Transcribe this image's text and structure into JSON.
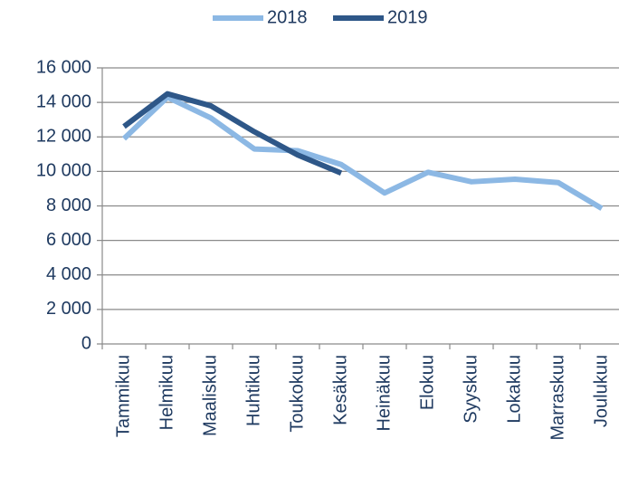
{
  "chart_data": {
    "type": "line",
    "categories": [
      "Tammikuu",
      "Helmikuu",
      "Maaliskuu",
      "Huhtikuu",
      "Toukokuu",
      "Kesäkuu",
      "Heinäkuu",
      "Elokuu",
      "Syyskuu",
      "Lokakuu",
      "Marraskuu",
      "Joulukuu"
    ],
    "series": [
      {
        "name": "2018",
        "color": "#8cb8e4",
        "values": [
          11900,
          14300,
          13100,
          11300,
          11200,
          10400,
          8750,
          9950,
          9400,
          9550,
          9350,
          7850
        ]
      },
      {
        "name": "2019",
        "color": "#2e5788",
        "values": [
          12600,
          14500,
          13800,
          12300,
          10950,
          9900,
          null,
          null,
          null,
          null,
          null,
          null
        ]
      }
    ],
    "ylim": [
      0,
      16000
    ],
    "yticks": [
      0,
      {
        "value": 2000,
        "label": "2 000"
      },
      {
        "value": 4000,
        "label": "4 000"
      },
      {
        "value": 6000,
        "label": "6 000"
      },
      {
        "value": 8000,
        "label": "8 000"
      },
      {
        "value": 10000,
        "label": "10 000"
      },
      {
        "value": 12000,
        "label": "12 000"
      },
      {
        "value": 14000,
        "label": "14 000"
      },
      {
        "value": 16000,
        "label": "16 000"
      }
    ],
    "grid": true,
    "legend": "top"
  }
}
